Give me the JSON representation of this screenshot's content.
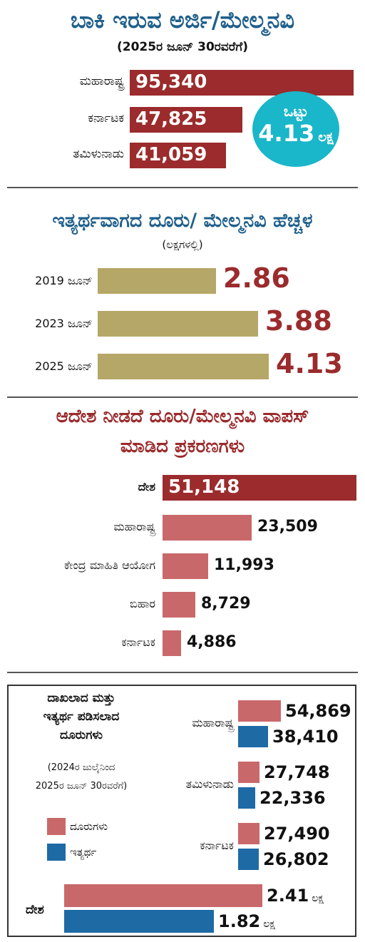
{
  "chart_data": [
    {
      "type": "bar",
      "title": "ಬಾಕಿ ಇರುವ ಅರ್ಜಿ/ಮೇಲ್ಮನವಿ",
      "subtitle": "(2025ರ ಜೂನ್ 30ರವರೆಗೆ)",
      "categories": [
        "ಮಹಾರಾಷ್ಟ್ರ",
        "ಕರ್ನಾಟಕ",
        "ತಮಿಳುನಾಡು"
      ],
      "values": [
        95340,
        47825,
        41059
      ],
      "value_labels": [
        "95,340",
        "47,825",
        "41,059"
      ],
      "total_label": "ಒಟ್ಟು",
      "total_value": "4.13",
      "total_unit": "ಲಕ್ಷ",
      "colors": {
        "bar": "#9b2b2c",
        "badge": "#1ab6c9"
      }
    },
    {
      "type": "bar",
      "title": "ಇತ್ಯರ್ಥವಾಗದ ದೂರು/ ಮೇಲ್ಮನವಿ ಹೆಚ್ಚಳ",
      "subtitle": "(ಲಕ್ಷಗಳಲ್ಲಿ)",
      "categories": [
        "2019 ಜೂನ್",
        "2023 ಜೂನ್",
        "2025 ಜೂನ್"
      ],
      "values": [
        2.86,
        3.88,
        4.13
      ],
      "value_labels": [
        "2.86",
        "3.88",
        "4.13"
      ],
      "colors": {
        "bar": "#b5a767",
        "value": "#9b2b2c"
      }
    },
    {
      "type": "bar",
      "title_line1": "ಆದೇಶ ನೀಡದೆ ದೂರು/ಮೇಲ್ಮನವಿ ವಾಪಸ್",
      "title_line2": "ಮಾಡಿದ ಪ್ರಕರಣಗಳು",
      "categories": [
        "ದೇಶ",
        "ಮಹಾರಾಷ್ಟ್ರ",
        "ಕೇಂದ್ರ ಮಾಹಿತಿ ಆಯೋಗ",
        "ಬಿಹಾರ",
        "ಕರ್ನಾಟಕ"
      ],
      "values": [
        51148,
        23509,
        11993,
        8729,
        4886
      ],
      "value_labels": [
        "51,148",
        "23,509",
        "11,993",
        "8,729",
        "4,886"
      ],
      "colors": {
        "highlight": "#9b2b2c",
        "bar": "#c9686a"
      }
    },
    {
      "type": "bar",
      "title_lines": [
        "ದಾಖಲಾದ ಮತ್ತು",
        "ಇತ್ಯರ್ಥ ಪಡಿಸಲಾದ",
        "ದೂರುಗಳು"
      ],
      "subtitle_lines": [
        "(2024ರ ಜುಲೈನಿಂದ",
        "2025ರ ಜೂನ್ 30ರವರೆಗೆ)"
      ],
      "categories": [
        "ಮಹಾರಾಷ್ಟ್ರ",
        "ತಮಿಳುನಾಡು",
        "ಕರ್ನಾಟಕ"
      ],
      "series": [
        {
          "name": "ದೂರುಗಳು",
          "values": [
            54869,
            27748,
            27490
          ],
          "value_labels": [
            "54,869",
            "27,748",
            "27,490"
          ],
          "color": "#c9686a"
        },
        {
          "name": "ಇತ್ಯರ್ಥ",
          "values": [
            38410,
            22336,
            26802
          ],
          "value_labels": [
            "38,410",
            "22,336",
            "26,802"
          ],
          "color": "#1d6aa5"
        }
      ],
      "national": {
        "label": "ದೇಶ",
        "values": [
          2.41,
          1.82
        ],
        "value_labels": [
          "2.41",
          "1.82"
        ],
        "unit": "ಲಕ್ಷ"
      },
      "legend": "left"
    }
  ]
}
